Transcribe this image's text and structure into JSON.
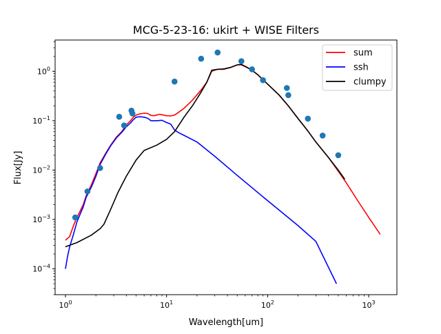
{
  "chart_data": {
    "type": "line",
    "title": "MCG-5-23-16: ukirt + WISE Filters",
    "xlabel": "Wavelength[um]",
    "ylabel": "Flux[Jy]",
    "xscale": "log",
    "yscale": "log",
    "xlim": [
      0.79,
      1900
    ],
    "ylim": [
      3e-05,
      4.3
    ],
    "grid": false,
    "legend_position": "top-right",
    "x_ticks": [
      {
        "value": 1,
        "base": "10",
        "exp": "0"
      },
      {
        "value": 10,
        "base": "10",
        "exp": "1"
      },
      {
        "value": 100,
        "base": "10",
        "exp": "2"
      },
      {
        "value": 1000,
        "base": "10",
        "exp": "3"
      }
    ],
    "y_ticks": [
      {
        "value": 0.0001,
        "base": "10",
        "exp": "−4"
      },
      {
        "value": 0.001,
        "base": "10",
        "exp": "−3"
      },
      {
        "value": 0.01,
        "base": "10",
        "exp": "−2"
      },
      {
        "value": 0.1,
        "base": "10",
        "exp": "−1"
      },
      {
        "value": 1,
        "base": "10",
        "exp": "0"
      }
    ],
    "series": [
      {
        "name": "sum",
        "color": "#ff0000",
        "points": [
          [
            1.0,
            0.00038
          ],
          [
            1.1,
            0.00045
          ],
          [
            1.2,
            0.00075
          ],
          [
            1.3,
            0.0011
          ],
          [
            1.5,
            0.002
          ],
          [
            1.6,
            0.003
          ],
          [
            1.8,
            0.005
          ],
          [
            2.0,
            0.0085
          ],
          [
            2.2,
            0.014
          ],
          [
            2.5,
            0.022
          ],
          [
            2.8,
            0.032
          ],
          [
            3.2,
            0.047
          ],
          [
            3.6,
            0.06
          ],
          [
            4.0,
            0.082
          ],
          [
            4.4,
            0.1
          ],
          [
            4.7,
            0.118
          ],
          [
            5.0,
            0.13
          ],
          [
            5.5,
            0.138
          ],
          [
            6.0,
            0.142
          ],
          [
            6.5,
            0.14
          ],
          [
            7.0,
            0.128
          ],
          [
            7.5,
            0.126
          ],
          [
            8.0,
            0.13
          ],
          [
            8.5,
            0.135
          ],
          [
            9.0,
            0.132
          ],
          [
            10,
            0.126
          ],
          [
            11,
            0.125
          ],
          [
            12,
            0.13
          ],
          [
            13,
            0.145
          ],
          [
            15,
            0.18
          ],
          [
            18,
            0.26
          ],
          [
            22,
            0.42
          ],
          [
            25,
            0.6
          ],
          [
            28,
            1.0
          ],
          [
            32,
            1.1
          ],
          [
            37,
            1.1
          ],
          [
            43,
            1.2
          ],
          [
            50,
            1.35
          ],
          [
            55,
            1.35
          ],
          [
            62,
            1.2
          ],
          [
            70,
            1.05
          ],
          [
            80,
            0.85
          ],
          [
            100,
            0.55
          ],
          [
            130,
            0.33
          ],
          [
            160,
            0.2
          ],
          [
            200,
            0.11
          ],
          [
            250,
            0.062
          ],
          [
            300,
            0.037
          ],
          [
            400,
            0.018
          ],
          [
            500,
            0.0095
          ],
          [
            600,
            0.0055
          ],
          [
            800,
            0.0022
          ],
          [
            1000,
            0.0011
          ],
          [
            1300,
            0.0005
          ]
        ]
      },
      {
        "name": "ssh",
        "color": "#0000ff",
        "points": [
          [
            1.0,
            0.0001
          ],
          [
            1.05,
            0.00018
          ],
          [
            1.1,
            0.00028
          ],
          [
            1.2,
            0.0005
          ],
          [
            1.3,
            0.0009
          ],
          [
            1.4,
            0.0013
          ],
          [
            1.5,
            0.0018
          ],
          [
            1.6,
            0.0028
          ],
          [
            1.8,
            0.0045
          ],
          [
            2.0,
            0.0075
          ],
          [
            2.2,
            0.013
          ],
          [
            2.5,
            0.021
          ],
          [
            2.8,
            0.031
          ],
          [
            3.2,
            0.045
          ],
          [
            3.6,
            0.058
          ],
          [
            4.0,
            0.075
          ],
          [
            4.4,
            0.09
          ],
          [
            4.7,
            0.105
          ],
          [
            5.0,
            0.118
          ],
          [
            5.5,
            0.12
          ],
          [
            6.0,
            0.118
          ],
          [
            6.5,
            0.112
          ],
          [
            7.0,
            0.1
          ],
          [
            8.0,
            0.1
          ],
          [
            9.0,
            0.102
          ],
          [
            10,
            0.092
          ],
          [
            11,
            0.085
          ],
          [
            12,
            0.065
          ],
          [
            13,
            0.058
          ],
          [
            15,
            0.05
          ],
          [
            20,
            0.037
          ],
          [
            30,
            0.019
          ],
          [
            50,
            0.0078
          ],
          [
            100,
            0.0024
          ],
          [
            200,
            0.00075
          ],
          [
            300,
            0.00036
          ],
          [
            480,
            5e-05
          ]
        ]
      },
      {
        "name": "clumpy",
        "color": "#000000",
        "points": [
          [
            1.0,
            0.00028
          ],
          [
            1.3,
            0.00034
          ],
          [
            1.8,
            0.00048
          ],
          [
            2.2,
            0.00065
          ],
          [
            2.4,
            0.0008
          ],
          [
            2.8,
            0.0016
          ],
          [
            3.3,
            0.0035
          ],
          [
            4.0,
            0.0075
          ],
          [
            5.0,
            0.016
          ],
          [
            6.0,
            0.025
          ],
          [
            8.0,
            0.032
          ],
          [
            10,
            0.042
          ],
          [
            12,
            0.06
          ],
          [
            15,
            0.12
          ],
          [
            18,
            0.2
          ],
          [
            22,
            0.38
          ],
          [
            25,
            0.6
          ],
          [
            28,
            1.05
          ],
          [
            32,
            1.1
          ],
          [
            37,
            1.12
          ],
          [
            43,
            1.2
          ],
          [
            50,
            1.35
          ],
          [
            55,
            1.38
          ],
          [
            62,
            1.22
          ],
          [
            70,
            1.05
          ],
          [
            80,
            0.85
          ],
          [
            100,
            0.55
          ],
          [
            130,
            0.33
          ],
          [
            160,
            0.2
          ],
          [
            200,
            0.11
          ],
          [
            250,
            0.062
          ],
          [
            300,
            0.037
          ],
          [
            400,
            0.018
          ],
          [
            500,
            0.01
          ],
          [
            580,
            0.0065
          ]
        ]
      }
    ],
    "scatter": {
      "color": "#1f77b4",
      "points": [
        [
          1.25,
          0.0011
        ],
        [
          1.65,
          0.0037
        ],
        [
          2.2,
          0.011
        ],
        [
          3.4,
          0.12
        ],
        [
          3.8,
          0.08
        ],
        [
          4.5,
          0.16
        ],
        [
          4.6,
          0.14
        ],
        [
          12,
          0.62
        ],
        [
          22,
          1.8
        ],
        [
          32,
          2.4
        ],
        [
          55,
          1.6
        ],
        [
          70,
          1.1
        ],
        [
          90,
          0.66
        ],
        [
          155,
          0.46
        ],
        [
          160,
          0.33
        ],
        [
          250,
          0.11
        ],
        [
          350,
          0.05
        ],
        [
          500,
          0.02
        ]
      ]
    }
  }
}
